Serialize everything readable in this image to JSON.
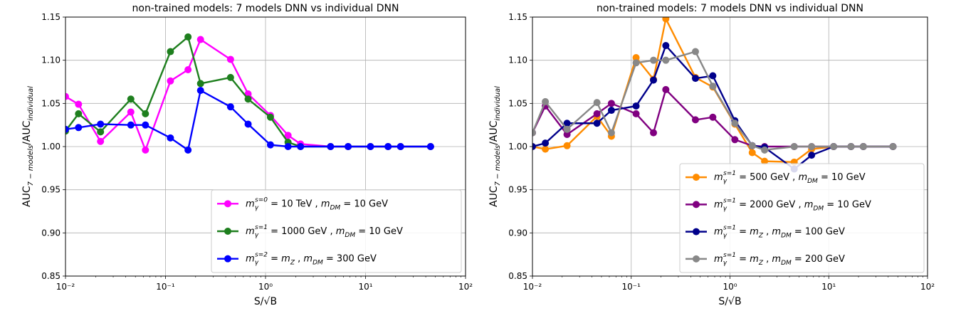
{
  "chart_data": [
    {
      "type": "line",
      "title": "non-trained models: 7 models DNN vs individual DNN",
      "xlabel": "S/√B",
      "ylabel": "AUC7 − models/AUCindividual",
      "xscale": "log",
      "xlim": [
        0.01,
        100
      ],
      "ylim": [
        0.85,
        1.15
      ],
      "xticks": [
        "10⁻²",
        "10⁻¹",
        "10⁰",
        "10¹",
        "10²"
      ],
      "yticks": [
        "0.85",
        "0.90",
        "0.95",
        "1.00",
        "1.05",
        "1.10",
        "1.15"
      ],
      "grid": true,
      "legend_position": "lower-right",
      "series": [
        {
          "name": "mγs=0 = 10 TeV , mDM = 10 GeV",
          "color": "#ff00ff",
          "points": [
            [
              0.01,
              1.058
            ],
            [
              0.0135,
              1.049
            ],
            [
              0.0224,
              1.006
            ],
            [
              0.045,
              1.04
            ],
            [
              0.063,
              0.996
            ],
            [
              0.112,
              1.076
            ],
            [
              0.168,
              1.089
            ],
            [
              0.224,
              1.124
            ],
            [
              0.447,
              1.101
            ],
            [
              0.67,
              1.061
            ],
            [
              1.12,
              1.036
            ],
            [
              1.68,
              1.013
            ],
            [
              2.24,
              1.003
            ],
            [
              4.47,
              1.0
            ],
            [
              6.7,
              1.0
            ],
            [
              11.2,
              1.0
            ],
            [
              16.8,
              1.0
            ],
            [
              22.4,
              1.0
            ],
            [
              44.7,
              1.0
            ]
          ]
        },
        {
          "name": "mγs=1 = 1000 GeV , mDM = 10 GeV",
          "color": "#1e7f1e",
          "points": [
            [
              0.01,
              1.018
            ],
            [
              0.0135,
              1.038
            ],
            [
              0.0224,
              1.017
            ],
            [
              0.045,
              1.055
            ],
            [
              0.063,
              1.038
            ],
            [
              0.112,
              1.11
            ],
            [
              0.168,
              1.127
            ],
            [
              0.224,
              1.073
            ],
            [
              0.447,
              1.08
            ],
            [
              0.67,
              1.055
            ],
            [
              1.12,
              1.034
            ],
            [
              1.68,
              1.005
            ],
            [
              2.24,
              1.0
            ],
            [
              4.47,
              1.0
            ],
            [
              6.7,
              1.0
            ],
            [
              11.2,
              1.0
            ],
            [
              16.8,
              1.0
            ],
            [
              22.4,
              1.0
            ],
            [
              44.7,
              1.0
            ]
          ]
        },
        {
          "name": "mγs=2 = mZ , mDM = 300 GeV",
          "color": "#0000ff",
          "points": [
            [
              0.01,
              1.02
            ],
            [
              0.0135,
              1.022
            ],
            [
              0.0224,
              1.026
            ],
            [
              0.045,
              1.025
            ],
            [
              0.063,
              1.025
            ],
            [
              0.112,
              1.01
            ],
            [
              0.168,
              0.996
            ],
            [
              0.224,
              1.065
            ],
            [
              0.447,
              1.046
            ],
            [
              0.67,
              1.026
            ],
            [
              1.12,
              1.002
            ],
            [
              1.68,
              1.0
            ],
            [
              2.24,
              1.0
            ],
            [
              4.47,
              1.0
            ],
            [
              6.7,
              1.0
            ],
            [
              11.2,
              1.0
            ],
            [
              16.8,
              1.0
            ],
            [
              22.4,
              1.0
            ],
            [
              44.7,
              1.0
            ]
          ]
        }
      ]
    },
    {
      "type": "line",
      "title": "non-trained models: 7 models DNN vs individual DNN",
      "xlabel": "S/√B",
      "ylabel": "AUC7 − models/AUCindividual",
      "xscale": "log",
      "xlim": [
        0.01,
        100
      ],
      "ylim": [
        0.85,
        1.15
      ],
      "xticks": [
        "10⁻²",
        "10⁻¹",
        "10⁰",
        "10¹",
        "10²"
      ],
      "yticks": [
        "0.85",
        "0.90",
        "0.95",
        "1.00",
        "1.05",
        "1.10",
        "1.15"
      ],
      "grid": true,
      "legend_position": "lower-right",
      "series": [
        {
          "name": "mγs=1 = 500 GeV , mDM = 10 GeV",
          "color": "#ff8c00",
          "points": [
            [
              0.01,
              1.0
            ],
            [
              0.0135,
              0.997
            ],
            [
              0.0224,
              1.001
            ],
            [
              0.045,
              1.035
            ],
            [
              0.063,
              1.012
            ],
            [
              0.112,
              1.103
            ],
            [
              0.168,
              1.078
            ],
            [
              0.224,
              1.148
            ],
            [
              0.447,
              1.08
            ],
            [
              0.67,
              1.069
            ],
            [
              1.12,
              1.026
            ],
            [
              1.68,
              0.993
            ],
            [
              2.24,
              0.983
            ],
            [
              4.47,
              0.982
            ],
            [
              6.7,
              0.997
            ],
            [
              11.2,
              1.0
            ],
            [
              16.8,
              1.0
            ],
            [
              22.4,
              1.0
            ],
            [
              44.7,
              1.0
            ]
          ]
        },
        {
          "name": "mγs=1 = 2000 GeV , mDM = 10 GeV",
          "color": "#800080",
          "points": [
            [
              0.01,
              1.016
            ],
            [
              0.0135,
              1.047
            ],
            [
              0.0224,
              1.014
            ],
            [
              0.045,
              1.038
            ],
            [
              0.063,
              1.05
            ],
            [
              0.112,
              1.038
            ],
            [
              0.168,
              1.016
            ],
            [
              0.224,
              1.066
            ],
            [
              0.447,
              1.031
            ],
            [
              0.67,
              1.034
            ],
            [
              1.12,
              1.008
            ],
            [
              1.68,
              1.001
            ],
            [
              2.24,
              1.0
            ],
            [
              4.47,
              1.0
            ],
            [
              6.7,
              1.0
            ],
            [
              11.2,
              1.0
            ],
            [
              16.8,
              1.0
            ],
            [
              22.4,
              1.0
            ],
            [
              44.7,
              1.0
            ]
          ]
        },
        {
          "name": "mγs=1 = mZ , mDM = 100 GeV",
          "color": "#00008b",
          "points": [
            [
              0.01,
              1.0
            ],
            [
              0.0135,
              1.004
            ],
            [
              0.0224,
              1.027
            ],
            [
              0.045,
              1.027
            ],
            [
              0.063,
              1.042
            ],
            [
              0.112,
              1.047
            ],
            [
              0.168,
              1.077
            ],
            [
              0.224,
              1.117
            ],
            [
              0.447,
              1.079
            ],
            [
              0.67,
              1.082
            ],
            [
              1.12,
              1.03
            ],
            [
              1.68,
              1.001
            ],
            [
              2.24,
              0.999
            ],
            [
              4.47,
              0.974
            ],
            [
              6.7,
              0.99
            ],
            [
              11.2,
              1.0
            ],
            [
              16.8,
              1.0
            ],
            [
              22.4,
              1.0
            ],
            [
              44.7,
              1.0
            ]
          ]
        },
        {
          "name": "mγs=1 = mZ , mDM = 200 GeV",
          "color": "#888888",
          "points": [
            [
              0.01,
              1.016
            ],
            [
              0.0135,
              1.052
            ],
            [
              0.0224,
              1.02
            ],
            [
              0.045,
              1.051
            ],
            [
              0.063,
              1.016
            ],
            [
              0.112,
              1.097
            ],
            [
              0.168,
              1.1
            ],
            [
              0.224,
              1.1
            ],
            [
              0.447,
              1.11
            ],
            [
              0.67,
              1.07
            ],
            [
              1.12,
              1.027
            ],
            [
              1.68,
              1.001
            ],
            [
              2.24,
              0.996
            ],
            [
              4.47,
              1.0
            ],
            [
              6.7,
              1.0
            ],
            [
              11.2,
              1.0
            ],
            [
              16.8,
              1.0
            ],
            [
              22.4,
              1.0
            ],
            [
              44.7,
              1.0
            ]
          ]
        }
      ]
    }
  ]
}
